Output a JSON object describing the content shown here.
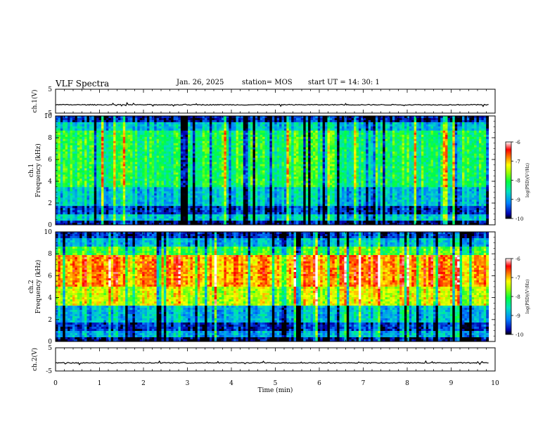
{
  "header": {
    "title": "VLF Spectra",
    "date": "Jan. 26, 2025",
    "station": "station= MOS",
    "start_ut": "start  UT =   14: 30: 1"
  },
  "chart_data": [
    {
      "id": "ch1-waveform",
      "type": "line",
      "ylabel": "ch.1(V)",
      "ylim": [
        -5,
        5
      ],
      "yticks": [
        "5",
        "-5"
      ],
      "xlim": [
        0,
        10
      ],
      "data_end": 9.85,
      "baseline": -1.5
    },
    {
      "id": "ch1-spectrogram",
      "type": "heatmap",
      "title": "ch.1",
      "ylabel": "Frequency (kHz)",
      "ylim": [
        0,
        10
      ],
      "yticks": [
        "0",
        "2",
        "4",
        "6",
        "8",
        "10"
      ],
      "xlim": [
        0,
        10
      ],
      "data_end": 9.85,
      "colorbar": {
        "label": "log(PSD)(V²/Hz)",
        "range": [
          -10,
          -6
        ],
        "ticks": [
          "-6",
          "-7",
          "-8",
          "-9",
          "-10"
        ]
      }
    },
    {
      "id": "ch2-spectrogram",
      "type": "heatmap",
      "title": "ch.2",
      "ylabel": "Frequency (kHz)",
      "ylim": [
        0,
        10
      ],
      "yticks": [
        "0",
        "2",
        "4",
        "6",
        "8",
        "10"
      ],
      "xlim": [
        0,
        10
      ],
      "data_end": 9.85,
      "colorbar": {
        "label": "log(PSD)(V²/Hz)",
        "range": [
          -10,
          -6
        ],
        "ticks": [
          "-6",
          "-7",
          "-8",
          "-9",
          "-10"
        ]
      }
    },
    {
      "id": "ch2-waveform",
      "type": "line",
      "ylabel": "ch.2(V)",
      "ylim": [
        -5,
        5
      ],
      "yticks": [
        "5",
        "-5"
      ],
      "xlim": [
        0,
        10
      ],
      "data_end": 9.85,
      "baseline": -1.5,
      "xlabel": "Time  (min)",
      "xticks": [
        "0",
        "1",
        "2",
        "3",
        "4",
        "5",
        "6",
        "7",
        "8",
        "9",
        "10"
      ]
    }
  ]
}
